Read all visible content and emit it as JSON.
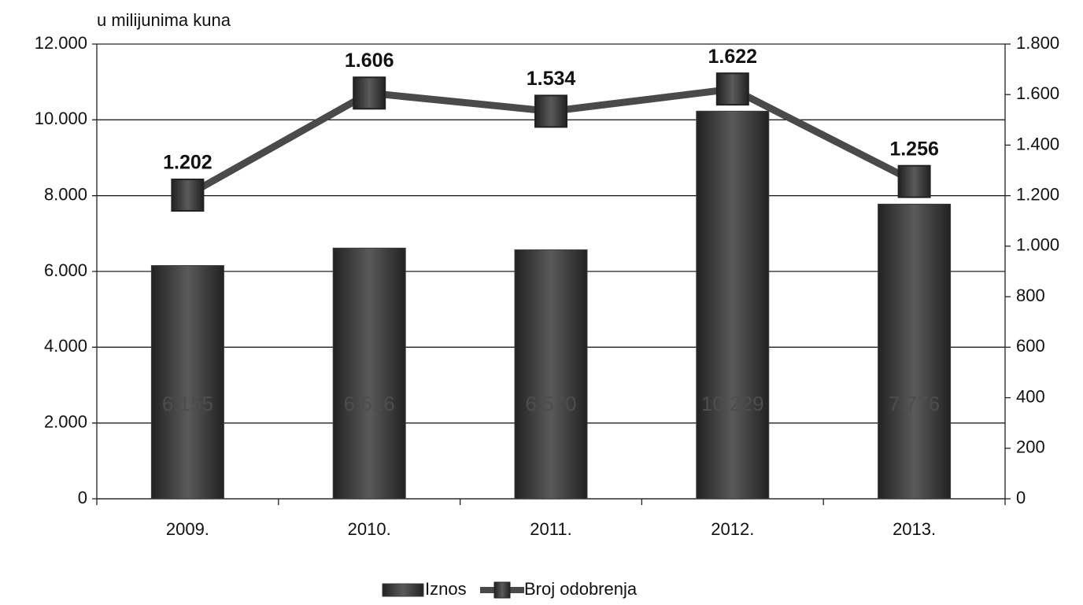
{
  "chart_data": {
    "type": "bar",
    "y_label": "u milijunima kuna",
    "categories": [
      "2009.",
      "2010.",
      "2011.",
      "2012.",
      "2013."
    ],
    "series": [
      {
        "name": "Iznos",
        "color": "#3c3c3c",
        "values": [
          6155,
          6616,
          6570,
          10229,
          7776
        ],
        "value_labels": [
          "6.155",
          "6.616",
          "6.570",
          "10.229",
          "7.776"
        ]
      },
      {
        "name": "Broj odobrenja",
        "type": "line",
        "axis": "y2",
        "color": "#4a4a4a",
        "values": [
          1202,
          1606,
          1534,
          1622,
          1256
        ],
        "value_labels": [
          "1.202",
          "1.606",
          "1.534",
          "1.622",
          "1.256"
        ]
      }
    ],
    "ylim": [
      0,
      12000
    ],
    "yticks": [
      0,
      {
        "value": 2000,
        "label": "2.000"
      },
      {
        "value": 4000,
        "label": "4.000"
      },
      {
        "value": 6000,
        "label": "6.000"
      },
      {
        "value": 8000,
        "label": "8.000"
      },
      {
        "value": 10000,
        "label": "10.000"
      },
      {
        "value": 12000,
        "label": "12.000"
      }
    ],
    "y2lim": [
      0,
      1800
    ],
    "y2ticks": [
      0,
      200,
      400,
      600,
      800,
      {
        "value": 1000,
        "label": "1.000"
      },
      {
        "value": 1200,
        "label": "1.200"
      },
      {
        "value": 1400,
        "label": "1.400"
      },
      {
        "value": 1600,
        "label": "1.600"
      },
      {
        "value": 1800,
        "label": "1.800"
      }
    ],
    "grid": true,
    "legend": "bottom"
  }
}
